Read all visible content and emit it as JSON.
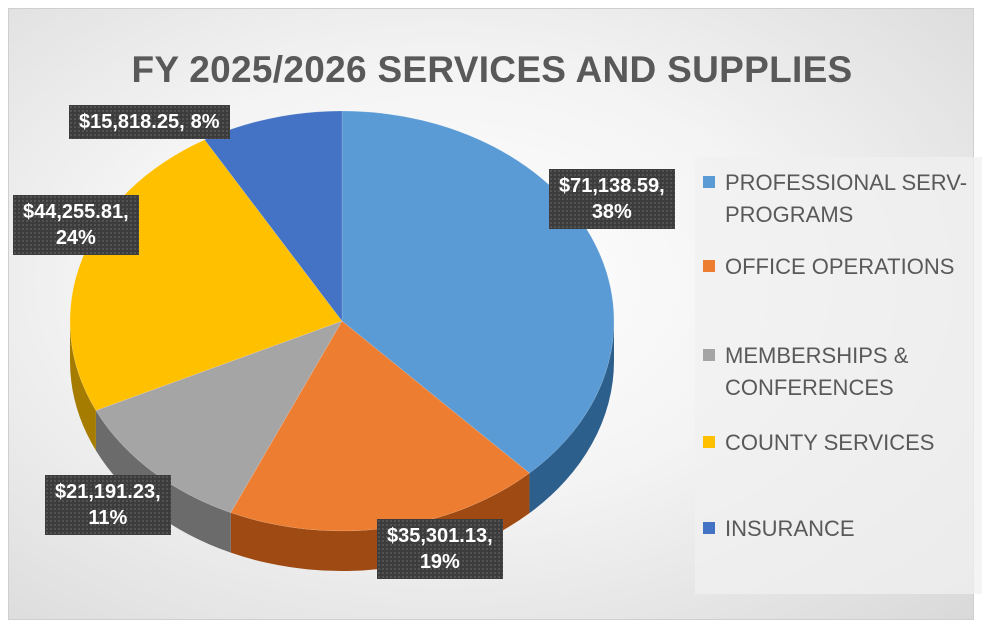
{
  "chart_data": {
    "type": "pie",
    "title": "FY 2025/2026 SERVICES AND SUPPLIES",
    "slices": [
      {
        "name": "PROFESSIONAL SERV-PROGRAMS",
        "value": 71138.59,
        "value_label": "$71,138.59,",
        "percent_label": "38%",
        "color": "#5b9bd5",
        "side_color": "#2d5f8c"
      },
      {
        "name": "OFFICE OPERATIONS",
        "value": 35301.13,
        "value_label": "$35,301.13,",
        "percent_label": "19%",
        "color": "#ed7d31",
        "side_color": "#9e4a12"
      },
      {
        "name": "MEMBERSHIPS & CONFERENCES",
        "value": 21191.23,
        "value_label": "$21,191.23,",
        "percent_label": "11%",
        "color": "#a5a5a5",
        "side_color": "#6b6b6b"
      },
      {
        "name": "COUNTY SERVICES",
        "value": 44255.81,
        "value_label": "$44,255.81,",
        "percent_label": "24%",
        "color": "#ffc000",
        "side_color": "#a67c00"
      },
      {
        "name": "INSURANCE",
        "value": 15818.25,
        "value_label": "$15,818.25,",
        "percent_label": "8%",
        "color": "#4472c4",
        "side_color": "#27467c"
      }
    ],
    "legend_position": "right",
    "start_angle_deg": 0,
    "direction": "clockwise"
  },
  "legend": {
    "items": [
      {
        "label_line1": "PROFESSIONAL SERV-",
        "label_line2": "PROGRAMS",
        "color": "#5b9bd5"
      },
      {
        "label_line1": "OFFICE OPERATIONS",
        "label_line2": "",
        "color": "#ed7d31"
      },
      {
        "label_line1": "MEMBERSHIPS &",
        "label_line2": "CONFERENCES",
        "color": "#a5a5a5"
      },
      {
        "label_line1": "COUNTY SERVICES",
        "label_line2": "",
        "color": "#ffc000"
      },
      {
        "label_line1": "INSURANCE",
        "label_line2": "",
        "color": "#4472c4"
      }
    ]
  }
}
